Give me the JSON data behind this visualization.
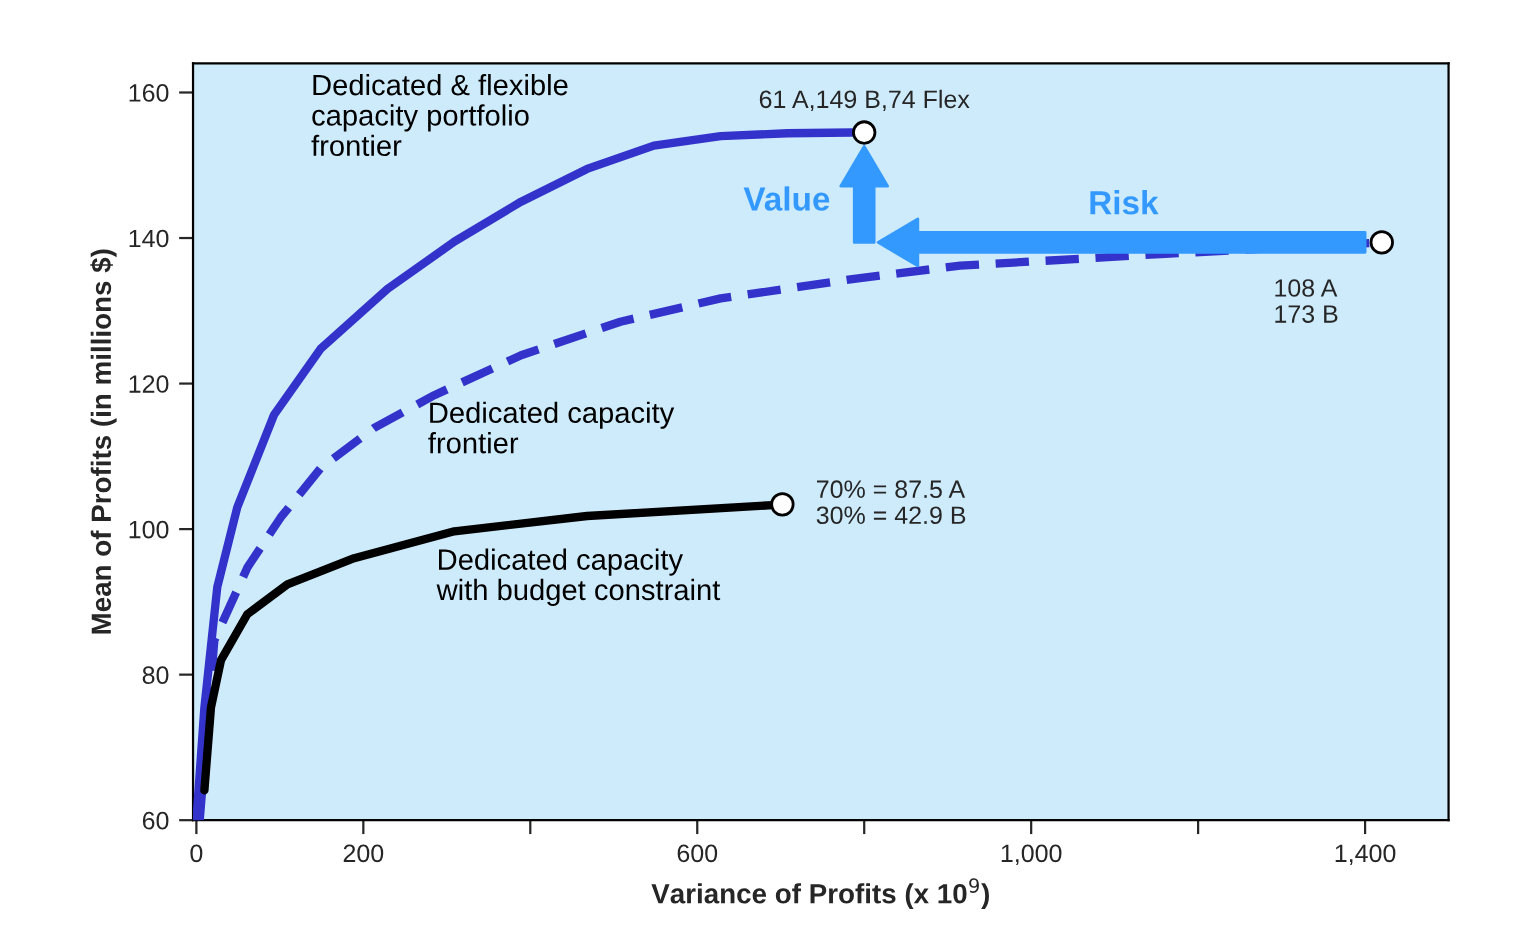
{
  "chart_data": {
    "type": "line",
    "xlabel": "Variance of Profits (x 10$^{9}$)",
    "ylabel": "Mean of Profits (in millions $)",
    "xlim": [
      -4,
      1500
    ],
    "ylim": [
      60,
      164
    ],
    "xticks": [
      0,
      200,
      {
        "value": 400,
        "label": null
      },
      600,
      {
        "value": 800,
        "label": null
      },
      {
        "value": 1000,
        "label": "1,000"
      },
      {
        "value": 1200,
        "label": null
      },
      {
        "value": 1400,
        "label": "1,400"
      }
    ],
    "yticks": [
      60,
      80,
      100,
      120,
      140,
      160
    ],
    "grid": false,
    "legend": false,
    "series": [
      {
        "color": "#3333cc",
        "line_style": "solid",
        "marker": "none",
        "x": [
          0,
          9.6,
          25,
          49,
          93,
          149,
          229,
          309,
          389,
          468,
          548,
          628,
          708,
          785
        ],
        "values": [
          60,
          75.5,
          92,
          103,
          115.7,
          124.8,
          133,
          139.5,
          145,
          149.5,
          152.7,
          154,
          154.4,
          154.5
        ]
      },
      {
        "color": "#3333cc",
        "line_style": "dashed",
        "marker": "none",
        "x": [
          4,
          21.5,
          61,
          101,
          149,
          213,
          285,
          389,
          508,
          628,
          788,
          915,
          1155,
          1405
        ],
        "values": [
          60,
          84.7,
          94.7,
          101.6,
          108.4,
          113.9,
          118.4,
          123.9,
          128.5,
          131.7,
          134.4,
          136.2,
          137.8,
          139.3
        ]
      },
      {
        "color": "#000000",
        "line_style": "solid",
        "marker": "none",
        "x": [
          9.6,
          17.5,
          29.5,
          61,
          109,
          189,
          309,
          468,
          690
        ],
        "values": [
          64.1,
          75.5,
          82,
          88.3,
          92.4,
          96,
          99.7,
          101.8,
          103.3
        ]
      },
      {
        "type": "scatter",
        "color": "#ffffff",
        "marker": "circle",
        "x": [
          800,
          1420,
          702
        ],
        "values": [
          154.5,
          139.4,
          103.4
        ]
      }
    ],
    "annotations": [
      "Dedicated & flexible\ncapacity portfolio\nfrontier",
      "Dedicated capacity\nfrontier",
      "Dedicated capacity\nwith budget constraint",
      {
        "text": "61 A,149 B,74 Flex",
        "x": 800,
        "y": 154.5
      },
      {
        "text": "108 A\n173 B",
        "x": 1420,
        "y": 139.4
      },
      {
        "text": "70% = 87.5 A\n30% = 42.9 B",
        "x": 702,
        "y": 103.4
      },
      "Value",
      "Risk"
    ]
  }
}
